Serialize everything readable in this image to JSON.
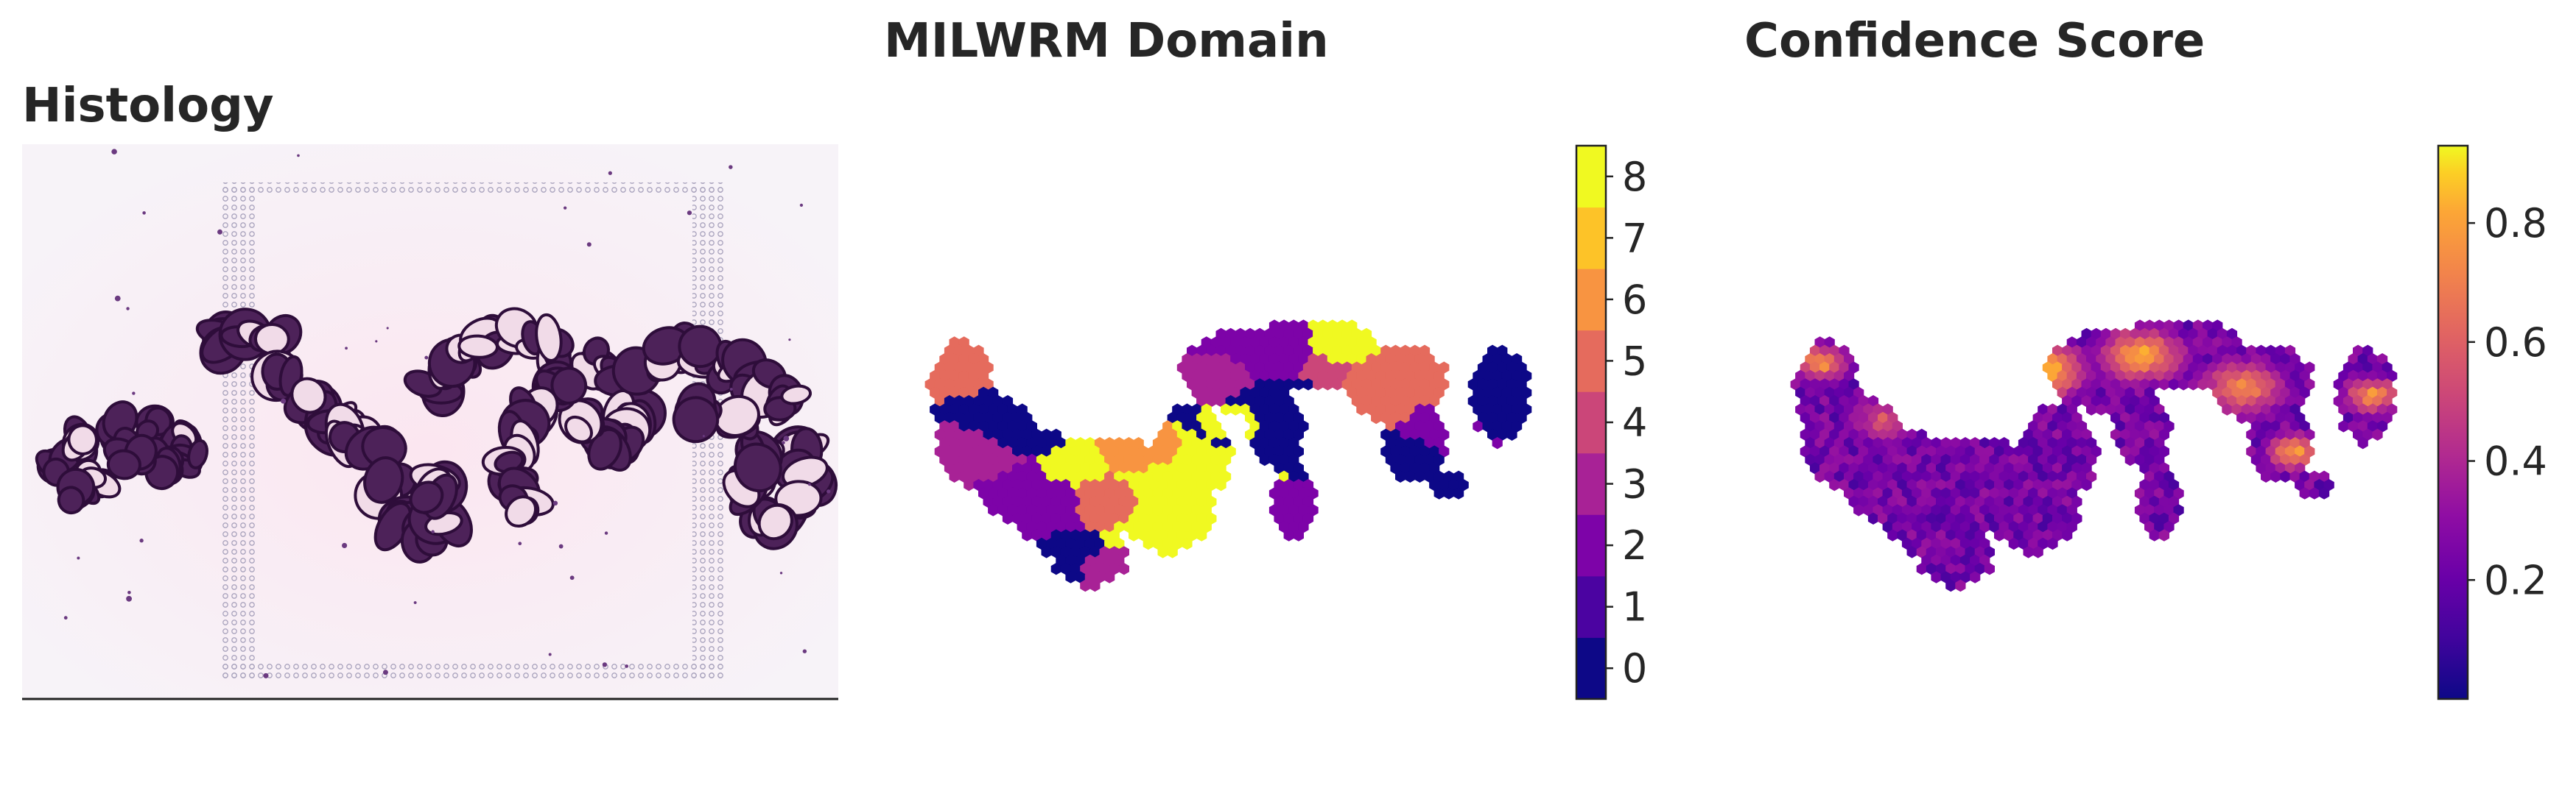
{
  "chart_data": [
    {
      "type": "image",
      "title": "Histology"
    },
    {
      "type": "heatmap",
      "title": "MILWRM Domain",
      "colorbar": {
        "colormap": "plasma",
        "discrete": true,
        "ticks": [
          "0",
          "1",
          "2",
          "3",
          "4",
          "5",
          "6",
          "7",
          "8"
        ],
        "range": [
          -0.5,
          8.5
        ],
        "colors": [
          "#0d0887",
          "#4b03a1",
          "#7d03a8",
          "#a82296",
          "#cb4679",
          "#e56b5d",
          "#f89441",
          "#fdc328",
          "#f0f921"
        ]
      }
    },
    {
      "type": "heatmap",
      "title": "Confidence Score",
      "colorbar": {
        "colormap": "plasma",
        "discrete": false,
        "ticks": [
          "0.2",
          "0.4",
          "0.6",
          "0.8"
        ],
        "tick_values": [
          0.2,
          0.4,
          0.6,
          0.8
        ],
        "range": [
          0.0,
          0.93
        ]
      }
    }
  ]
}
